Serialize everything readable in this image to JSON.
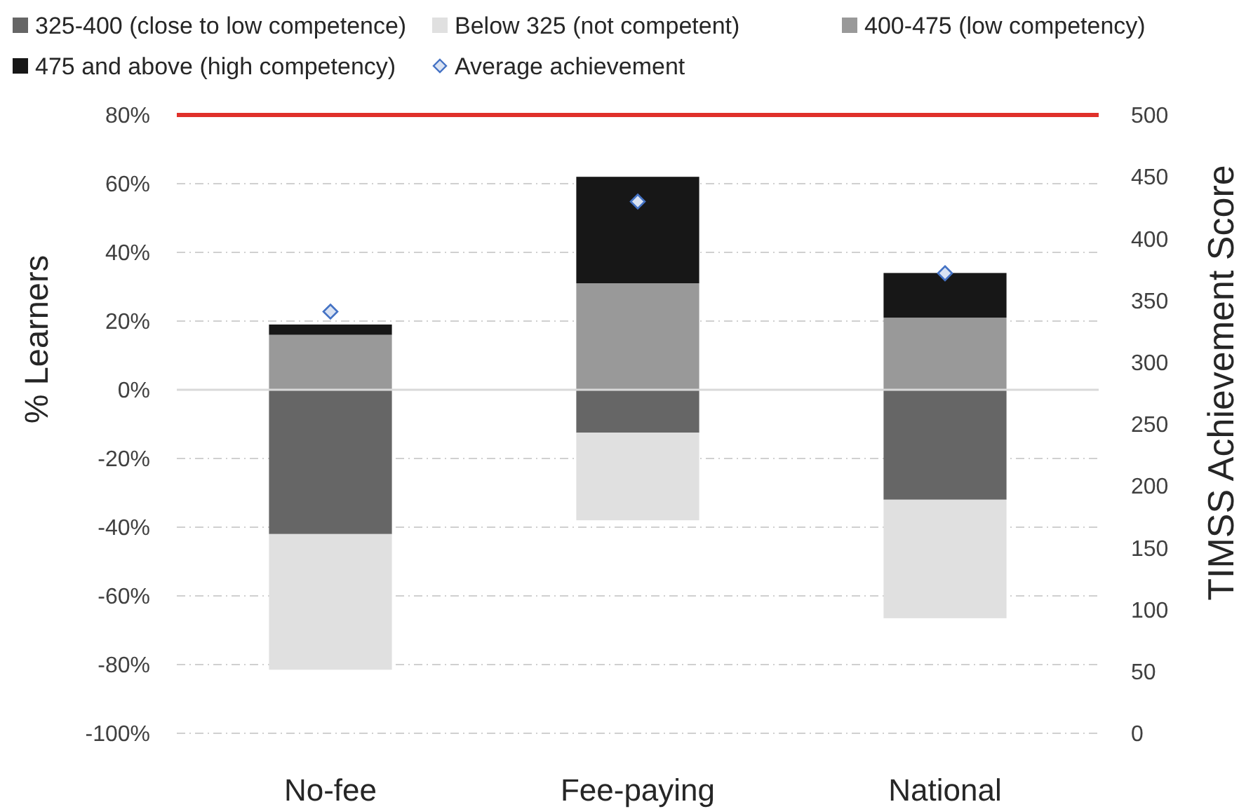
{
  "chart_data": {
    "type": "bar",
    "stacked": true,
    "categories": [
      "No-fee",
      "Fee-paying",
      "National"
    ],
    "ylabel": "% Learners",
    "y2label": "TIMSS Achievement Score",
    "ylim": [
      -100,
      80
    ],
    "yticks": [
      {
        "value": -100,
        "label": "-100%"
      },
      {
        "value": -80,
        "label": "-80%"
      },
      {
        "value": -60,
        "label": "-60%"
      },
      {
        "value": -40,
        "label": "-40%"
      },
      {
        "value": -20,
        "label": "-20%"
      },
      {
        "value": 0,
        "label": "0%"
      },
      {
        "value": 20,
        "label": "20%"
      },
      {
        "value": 40,
        "label": "40%"
      },
      {
        "value": 60,
        "label": "60%"
      },
      {
        "value": 80,
        "label": "80%"
      }
    ],
    "y2lim": [
      0,
      500
    ],
    "y2ticks": [
      0,
      50,
      100,
      150,
      200,
      250,
      300,
      350,
      400,
      450,
      500
    ],
    "series": [
      {
        "name": "325-400 (close to low competence)",
        "color": "#666666",
        "values": [
          -42,
          -12.5,
          -32
        ]
      },
      {
        "name": "Below 325 (not competent)",
        "color": "#e0e0e0",
        "values": [
          -39.5,
          -25.5,
          -34.5
        ]
      },
      {
        "name": "400-475 (low competency)",
        "color": "#999999",
        "values": [
          16,
          31,
          21
        ]
      },
      {
        "name": "475 and above (high competency)",
        "color": "#171717",
        "values": [
          3,
          31,
          13
        ]
      },
      {
        "name": "Average achievement",
        "type": "scatter",
        "axis": "y2",
        "marker": "diamond",
        "color": "#4472c4",
        "values": [
          341,
          430,
          372
        ]
      }
    ],
    "ref_lines": [
      {
        "axis": "y2",
        "value": 500,
        "color": "#e0302a"
      }
    ],
    "grid": "y",
    "legend": "top"
  }
}
